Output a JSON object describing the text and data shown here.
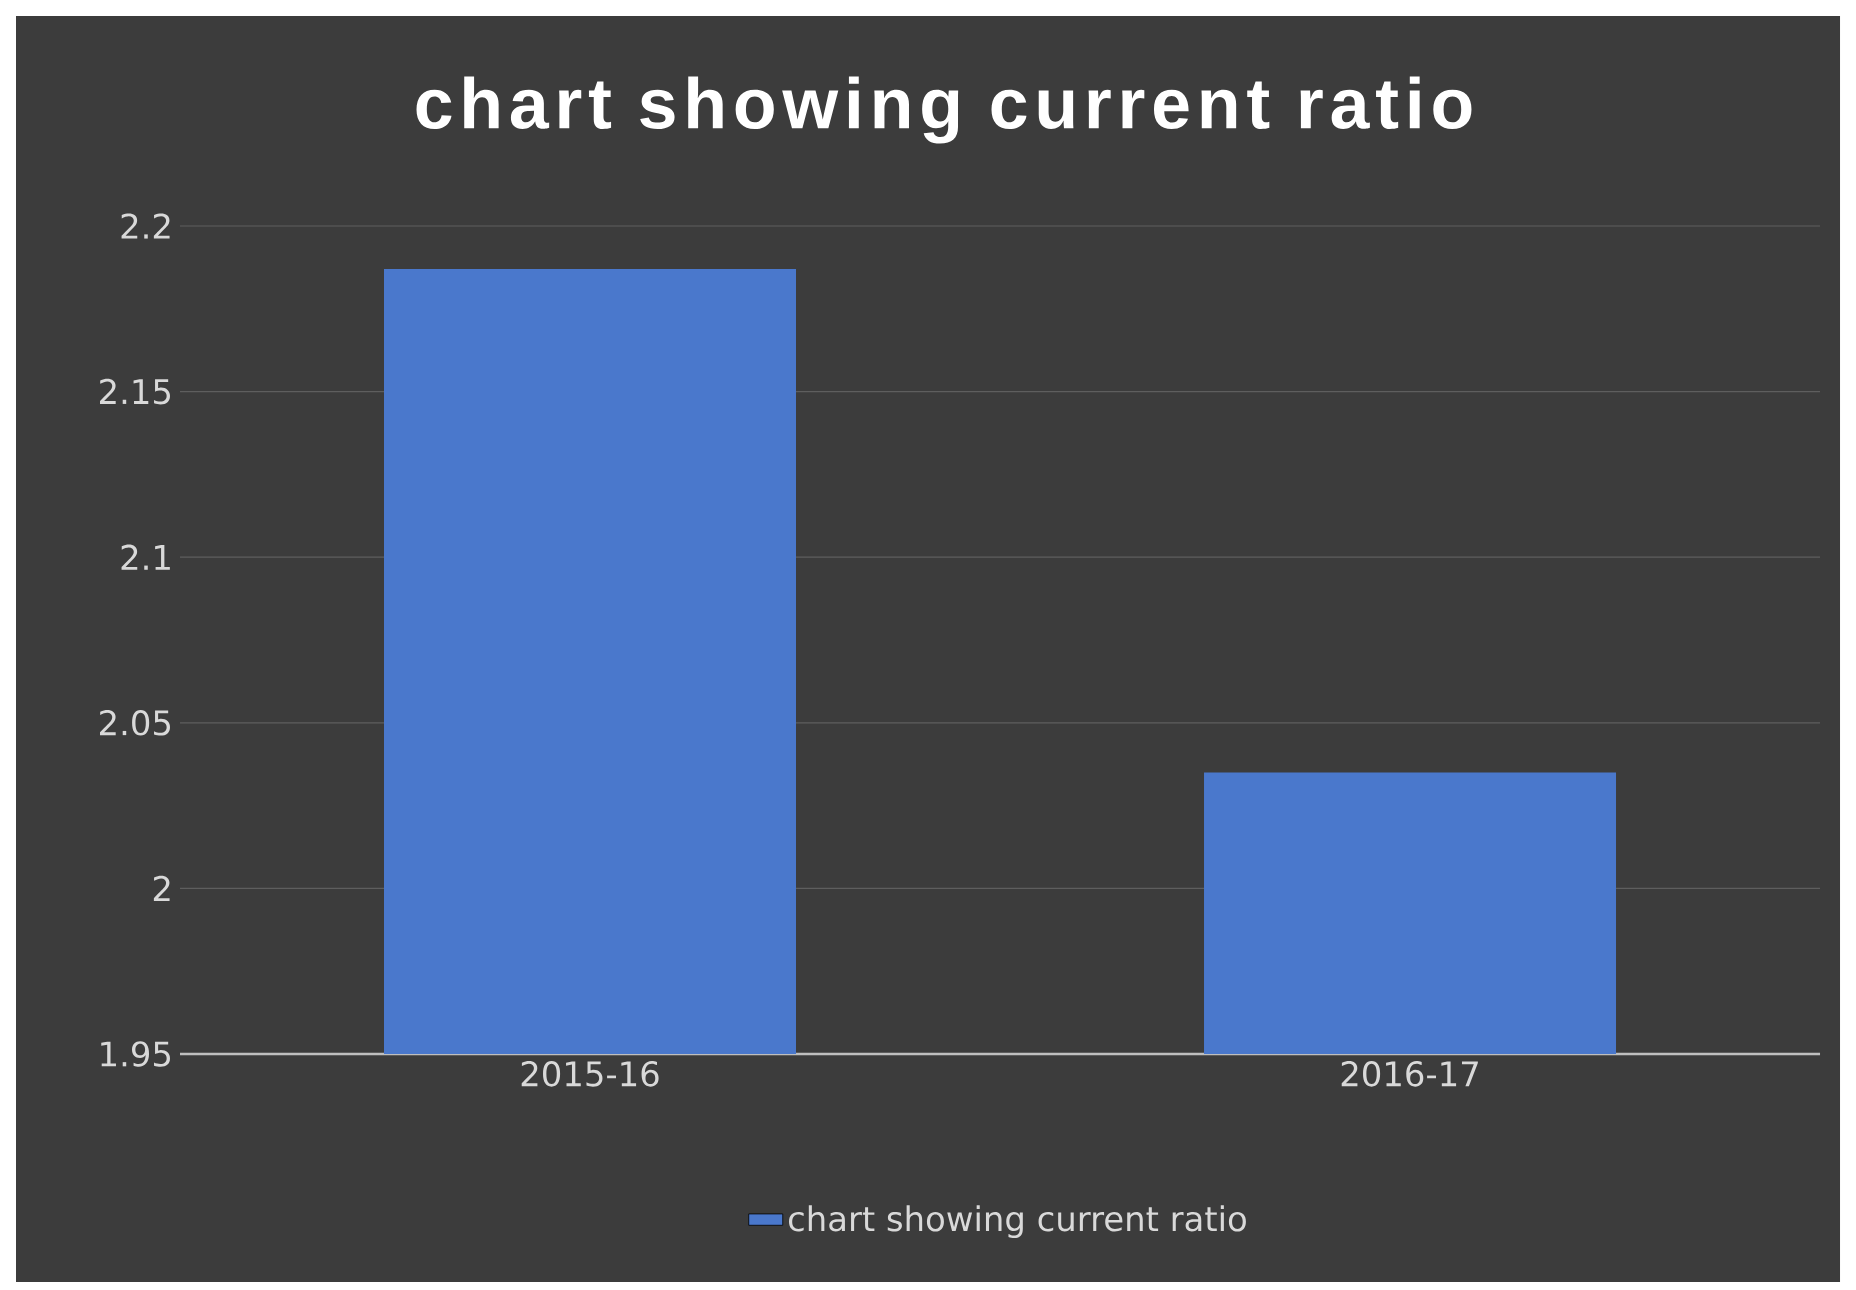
{
  "chart_data": {
    "type": "bar",
    "title": "chart showing current ratio",
    "categories": [
      "2015-16",
      "2016-17"
    ],
    "series": [
      {
        "name": "chart showing current ratio",
        "color": "#4a78cc",
        "values": [
          2.187,
          2.035
        ]
      }
    ],
    "ylim": [
      1.95,
      2.2
    ],
    "yticks": [
      1.95,
      2,
      2.05,
      2.1,
      2.15,
      2.2
    ],
    "grid": "y",
    "legend": "bottom"
  }
}
